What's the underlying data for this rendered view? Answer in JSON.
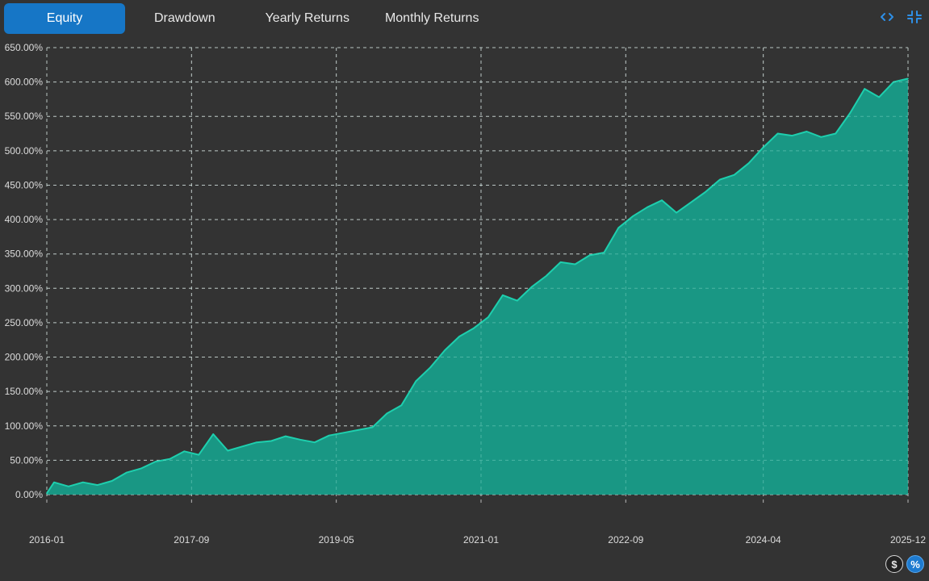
{
  "tabs": [
    {
      "label": "Equity",
      "active": true
    },
    {
      "label": "Drawdown",
      "active": false
    },
    {
      "label": "Yearly Returns",
      "active": false
    },
    {
      "label": "Monthly Returns",
      "active": false
    }
  ],
  "top_icons": [
    "code-icon",
    "collapse-icon"
  ],
  "bottom_icons": {
    "dollar": "$",
    "percent": "%"
  },
  "colors": {
    "background": "#333333",
    "accent": "#1676c6",
    "area_fill": "#17a08b",
    "area_line": "#1ecfae",
    "grid": "#cfcfcf"
  },
  "chart_data": {
    "type": "area",
    "title": "",
    "xlabel": "",
    "ylabel": "",
    "ylim": [
      0,
      650
    ],
    "y_unit": "%",
    "yticks": [
      "0.00%",
      "50.00%",
      "100.00%",
      "150.00%",
      "200.00%",
      "250.00%",
      "300.00%",
      "350.00%",
      "400.00%",
      "450.00%",
      "500.00%",
      "550.00%",
      "600.00%",
      "650.00%"
    ],
    "xticks": [
      "2016-01",
      "2017-09",
      "2019-05",
      "2021-01",
      "2022-09",
      "2024-04",
      "2025-12"
    ],
    "grid": true,
    "series": [
      {
        "x": [
          "2016-01",
          "2016-02",
          "2016-04",
          "2016-06",
          "2016-08",
          "2016-10",
          "2016-12",
          "2017-02",
          "2017-04",
          "2017-06",
          "2017-08",
          "2017-10",
          "2017-12",
          "2018-02",
          "2018-04",
          "2018-06",
          "2018-08",
          "2018-10",
          "2018-12",
          "2019-02",
          "2019-04",
          "2019-06",
          "2019-08",
          "2019-10",
          "2019-12",
          "2020-02",
          "2020-04",
          "2020-06",
          "2020-08",
          "2020-10",
          "2020-12",
          "2021-02",
          "2021-04",
          "2021-06",
          "2021-08",
          "2021-10",
          "2021-12",
          "2022-02",
          "2022-04",
          "2022-06",
          "2022-08",
          "2022-10",
          "2022-12",
          "2023-02",
          "2023-04",
          "2023-06",
          "2023-08",
          "2023-10",
          "2023-12",
          "2024-02",
          "2024-04",
          "2024-06",
          "2024-08",
          "2024-10",
          "2024-12",
          "2025-02",
          "2025-04",
          "2025-06",
          "2025-08",
          "2025-10",
          "2025-12"
        ],
        "values": [
          2,
          18,
          12,
          18,
          14,
          20,
          32,
          38,
          48,
          52,
          63,
          58,
          88,
          64,
          70,
          76,
          78,
          85,
          80,
          76,
          86,
          90,
          94,
          98,
          118,
          130,
          165,
          185,
          210,
          230,
          242,
          258,
          290,
          282,
          302,
          318,
          338,
          335,
          348,
          352,
          388,
          405,
          418,
          428,
          410,
          425,
          440,
          458,
          465,
          482,
          505,
          525,
          522,
          528,
          520,
          525,
          555,
          590,
          578,
          600,
          605
        ]
      }
    ]
  }
}
